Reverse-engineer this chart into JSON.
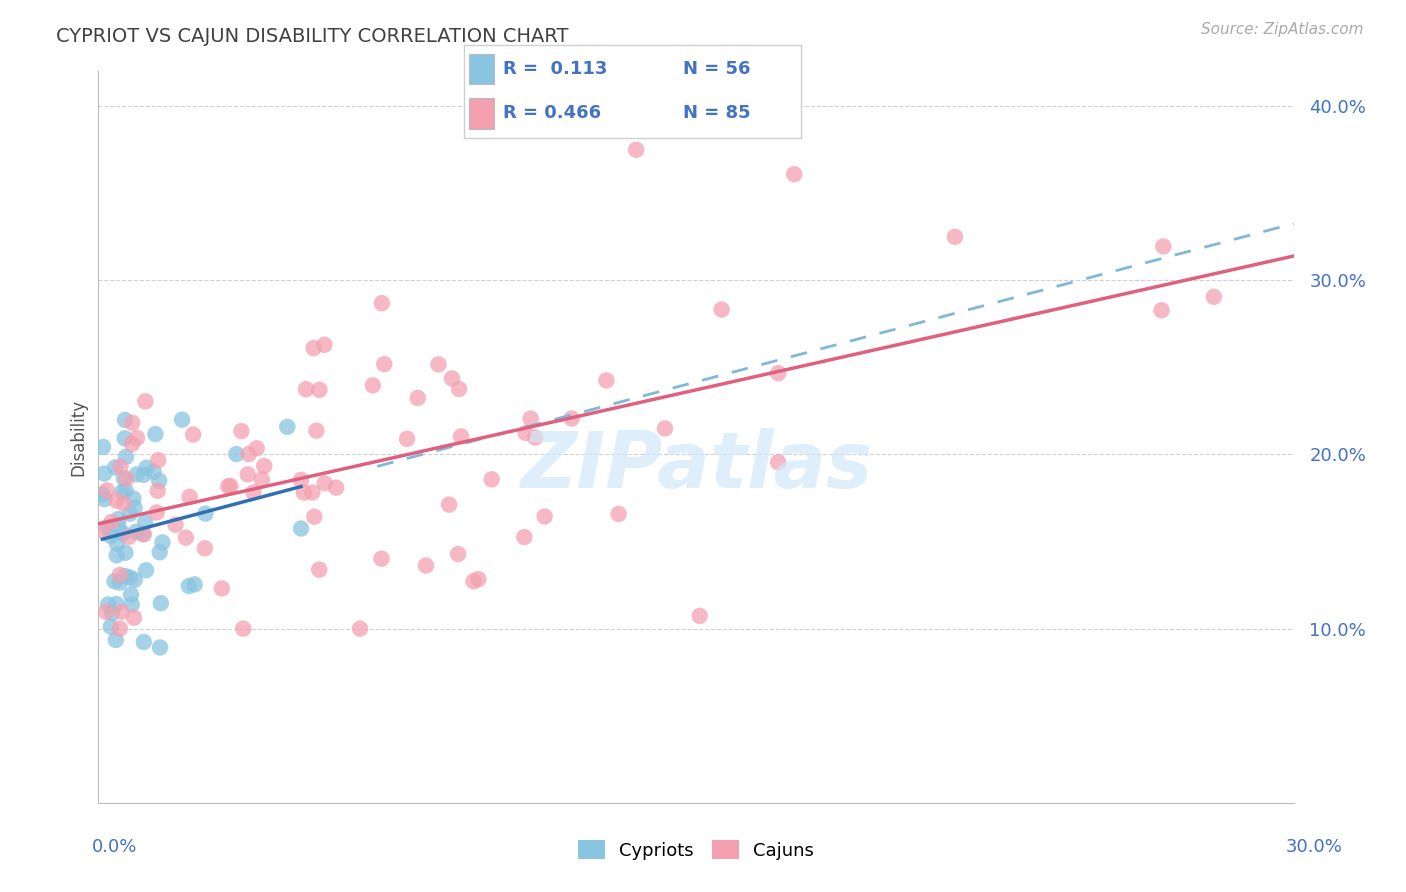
{
  "title": "CYPRIOT VS CAJUN DISABILITY CORRELATION CHART",
  "source": "Source: ZipAtlas.com",
  "ylabel": "Disability",
  "xlim": [
    0.0,
    0.3
  ],
  "ylim": [
    0.0,
    0.42
  ],
  "yticks": [
    0.1,
    0.2,
    0.3,
    0.4
  ],
  "ytick_labels": [
    "10.0%",
    "20.0%",
    "30.0%",
    "40.0%"
  ],
  "cypriot_color": "#89c4e1",
  "cajun_color": "#f4a0b0",
  "cypriot_line_color": "#3070b0",
  "cajun_line_color": "#e06080",
  "dashed_line_color": "#80b8d8",
  "background_color": "#ffffff",
  "grid_color": "#d0d0d0",
  "title_color": "#404040",
  "axis_label_color": "#4472c4",
  "watermark_color": "#d0e8f8",
  "seed": 123
}
